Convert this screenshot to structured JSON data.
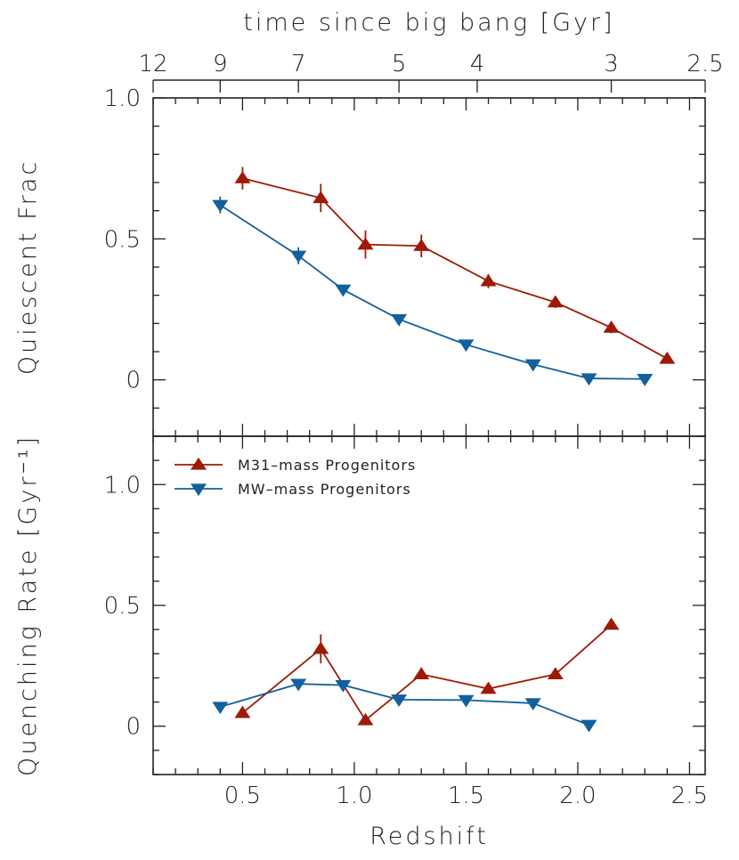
{
  "chart_data": {
    "type": "line",
    "title": "",
    "top_axis": {
      "label": "time since big bang [Gyr]",
      "tick_labels": [
        "12",
        "9",
        "7",
        "5",
        "4",
        "3",
        "2.5"
      ],
      "tick_redshifts": [
        0.1,
        0.4,
        0.75,
        1.2,
        1.55,
        2.15,
        2.57
      ]
    },
    "x_axis": {
      "label": "Redshift",
      "range": [
        0.1,
        2.57
      ],
      "ticks": [
        0.5,
        1.0,
        1.5,
        2.0,
        2.5
      ],
      "tick_labels": [
        "0.5",
        "1.0",
        "1.5",
        "2.0",
        "2.5"
      ]
    },
    "legend": {
      "placement": "top-left of lower panel",
      "entries": [
        {
          "label": "M31–mass Progenitors",
          "marker": "triangle-up",
          "color": "#9e1a06"
        },
        {
          "label": "MW–mass Progenitors",
          "marker": "triangle-down",
          "color": "#12609e"
        }
      ]
    },
    "panels": [
      {
        "name": "quiescent-fraction",
        "ylabel": "Quiescent Frac",
        "ylim": [
          -0.2,
          1.0
        ],
        "yticks": [
          0,
          0.5,
          1.0
        ],
        "ytick_labels": [
          "0",
          "0.5",
          "1.0"
        ],
        "series": [
          {
            "name": "M31–mass Progenitors",
            "marker": "triangle-up",
            "color": "#9e1a06",
            "x": [
              0.5,
              0.85,
              1.05,
              1.3,
              1.6,
              1.9,
              2.15,
              2.4
            ],
            "y": [
              0.715,
              0.645,
              0.48,
              0.475,
              0.35,
              0.275,
              0.185,
              0.075
            ],
            "err": [
              0.04,
              0.05,
              0.05,
              0.04,
              0.025,
              0.02,
              0.02,
              0.01
            ]
          },
          {
            "name": "MW–mass Progenitors",
            "marker": "triangle-down",
            "color": "#12609e",
            "x": [
              0.4,
              0.75,
              0.95,
              1.2,
              1.5,
              1.8,
              2.05,
              2.3
            ],
            "y": [
              0.62,
              0.44,
              0.32,
              0.215,
              0.125,
              0.055,
              0.005,
              0.003
            ],
            "err": [
              0.03,
              0.03,
              0.015,
              0.01,
              0.01,
              0.005,
              0.003,
              0.003
            ]
          }
        ]
      },
      {
        "name": "quenching-rate",
        "ylabel": "Quenching Rate [Gyr⁻¹]",
        "ylim": [
          -0.2,
          1.2
        ],
        "yticks": [
          0,
          0.5,
          1.0
        ],
        "ytick_labels": [
          "0",
          "0.5",
          "1.0"
        ],
        "series": [
          {
            "name": "M31–mass Progenitors",
            "marker": "triangle-up",
            "color": "#9e1a06",
            "x": [
              0.5,
              0.85,
              1.05,
              1.3,
              1.6,
              1.9,
              2.15
            ],
            "y": [
              0.055,
              0.32,
              0.025,
              0.215,
              0.155,
              0.215,
              0.42
            ],
            "err": [
              0.0,
              0.06,
              0.0,
              0.0,
              0.0,
              0.0,
              0.0
            ]
          },
          {
            "name": "MW–mass Progenitors",
            "marker": "triangle-down",
            "color": "#12609e",
            "x": [
              0.4,
              0.75,
              0.95,
              1.2,
              1.5,
              1.8,
              2.05
            ],
            "y": [
              0.08,
              0.175,
              0.17,
              0.11,
              0.108,
              0.095,
              0.005
            ],
            "err": [
              0.0,
              0.0,
              0.0,
              0.0,
              0.0,
              0.0,
              0.0
            ]
          }
        ]
      }
    ]
  }
}
